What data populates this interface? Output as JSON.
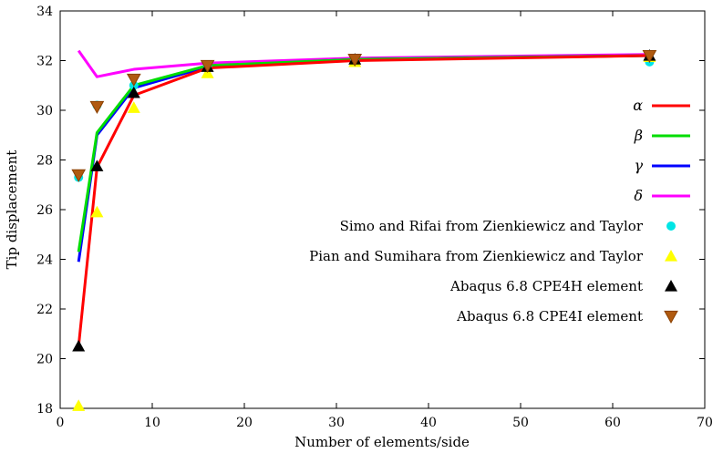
{
  "chart_data": {
    "type": "line",
    "xlabel": "Number of elements/side",
    "ylabel": "Tip displacement",
    "xlim": [
      0,
      70
    ],
    "ylim": [
      18,
      34
    ],
    "x_ticks": [
      0,
      10,
      20,
      30,
      40,
      50,
      60,
      70
    ],
    "y_ticks": [
      18,
      20,
      22,
      24,
      26,
      28,
      30,
      32,
      34
    ],
    "grid": false,
    "legend_position": "right",
    "series": [
      {
        "name": "α",
        "kind": "line",
        "color": "#ff0000",
        "x": [
          2,
          4,
          8,
          16,
          32,
          64
        ],
        "y": [
          20.5,
          27.7,
          30.6,
          31.7,
          32.0,
          32.2
        ]
      },
      {
        "name": "β",
        "kind": "line",
        "color": "#00dd00",
        "x": [
          2,
          4,
          8,
          16,
          32,
          64
        ],
        "y": [
          24.3,
          29.1,
          31.0,
          31.8,
          32.05,
          32.2
        ]
      },
      {
        "name": "γ",
        "kind": "line",
        "color": "#0000ff",
        "x": [
          2,
          4,
          8,
          16,
          32,
          64
        ],
        "y": [
          23.9,
          29.0,
          30.9,
          31.75,
          32.05,
          32.2
        ]
      },
      {
        "name": "δ",
        "kind": "line",
        "color": "#ff00ff",
        "x": [
          2,
          4,
          8,
          16,
          32,
          64
        ],
        "y": [
          32.4,
          31.35,
          31.65,
          31.9,
          32.1,
          32.25
        ]
      },
      {
        "name": "Simo and Rifai from Zienkiewicz and Taylor",
        "kind": "marker",
        "marker": "circle",
        "color": "#00e5e5",
        "x": [
          2,
          4,
          8,
          16,
          32,
          64
        ],
        "y": [
          27.3,
          30.2,
          31.0,
          31.8,
          32.0,
          31.95
        ]
      },
      {
        "name": "Pian and Sumihara from Zienkiewicz and Taylor",
        "kind": "marker",
        "marker": "triangle-up",
        "color": "#ffff00",
        "x": [
          2,
          4,
          8,
          16,
          32,
          64
        ],
        "y": [
          18.1,
          25.9,
          30.1,
          31.5,
          31.95,
          32.15
        ]
      },
      {
        "name": "Abaqus 6.8 CPE4H element",
        "kind": "marker",
        "marker": "triangle-up",
        "color": "#000000",
        "x": [
          2,
          4,
          8,
          16,
          32,
          64
        ],
        "y": [
          20.5,
          27.75,
          30.7,
          31.75,
          32.05,
          32.2
        ]
      },
      {
        "name": "Abaqus 6.8 CPE4I element",
        "kind": "marker",
        "marker": "triangle-down",
        "color": "#b05a10",
        "x": [
          2,
          4,
          8,
          16,
          32,
          64
        ],
        "y": [
          27.4,
          30.15,
          31.25,
          31.8,
          32.05,
          32.2
        ]
      }
    ]
  }
}
